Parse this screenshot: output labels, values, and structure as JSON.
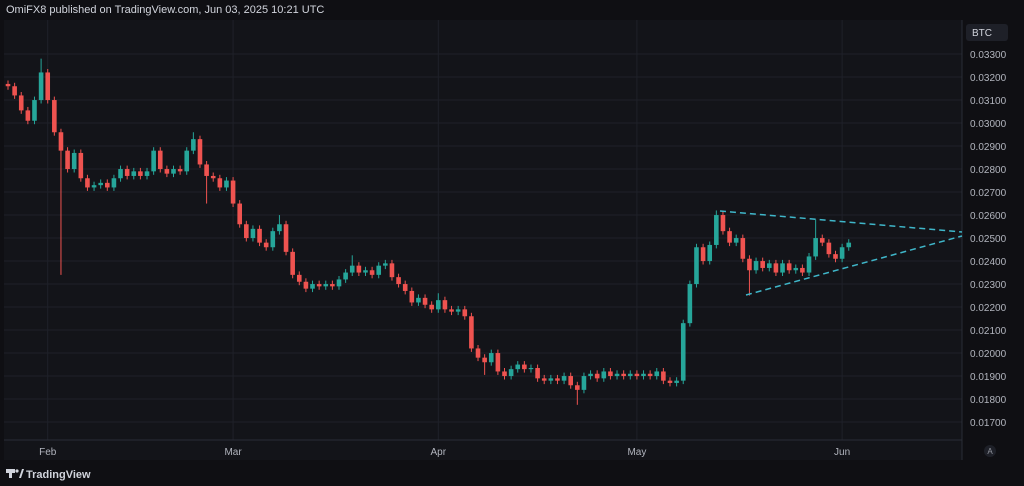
{
  "header": "OmiFX8 published on TradingView.com, Jun 03, 2025 10:21 UTC",
  "footer": "TradingView",
  "chart_data": {
    "type": "candlestick",
    "currency": "BTC",
    "autoscale_button": "A",
    "up_color": "#26a69a",
    "down_color": "#ef5350",
    "grid": true,
    "ylim": [
      0.01622,
      0.03448
    ],
    "yticks": [
      {
        "value": 0.017,
        "label": "0.01700"
      },
      {
        "value": 0.018,
        "label": "0.01800"
      },
      {
        "value": 0.019,
        "label": "0.01900"
      },
      {
        "value": 0.02,
        "label": "0.02000"
      },
      {
        "value": 0.021,
        "label": "0.02100"
      },
      {
        "value": 0.022,
        "label": "0.02200"
      },
      {
        "value": 0.023,
        "label": "0.02300"
      },
      {
        "value": 0.024,
        "label": "0.02400"
      },
      {
        "value": 0.025,
        "label": "0.02500"
      },
      {
        "value": 0.026,
        "label": "0.02600"
      },
      {
        "value": 0.027,
        "label": "0.02700"
      },
      {
        "value": 0.028,
        "label": "0.02800"
      },
      {
        "value": 0.029,
        "label": "0.02900"
      },
      {
        "value": 0.03,
        "label": "0.03000"
      },
      {
        "value": 0.031,
        "label": "0.03100"
      },
      {
        "value": 0.032,
        "label": "0.03200"
      },
      {
        "value": 0.033,
        "label": "0.03300"
      }
    ],
    "categories": [
      null,
      null,
      null,
      null,
      null,
      null,
      "Feb",
      null,
      null,
      null,
      null,
      null,
      null,
      null,
      null,
      null,
      null,
      null,
      null,
      null,
      null,
      null,
      null,
      null,
      null,
      null,
      null,
      null,
      null,
      null,
      null,
      null,
      null,
      null,
      "Mar",
      null,
      null,
      null,
      null,
      null,
      null,
      null,
      null,
      null,
      null,
      null,
      null,
      null,
      null,
      null,
      null,
      null,
      null,
      null,
      null,
      null,
      null,
      null,
      null,
      null,
      null,
      null,
      null,
      null,
      null,
      "Apr",
      null,
      null,
      null,
      null,
      null,
      null,
      null,
      null,
      null,
      null,
      null,
      null,
      null,
      null,
      null,
      null,
      null,
      null,
      null,
      null,
      null,
      null,
      null,
      null,
      null,
      null,
      null,
      null,
      null,
      "May",
      null,
      null,
      null,
      null,
      null,
      null,
      null,
      null,
      null,
      null,
      null,
      null,
      null,
      null,
      null,
      null,
      null,
      null,
      null,
      null,
      null,
      null,
      null,
      null,
      null,
      null,
      null,
      null,
      null,
      null,
      "Jun",
      null
    ],
    "open": [
      0.0317,
      0.0316,
      0.0312,
      0.03055,
      0.0301,
      0.031,
      0.0322,
      0.031,
      0.0296,
      0.0288,
      0.028,
      0.0287,
      0.0276,
      0.0272,
      0.0273,
      0.0274,
      0.0272,
      0.0276,
      0.028,
      0.0277,
      0.0279,
      0.0277,
      0.0279,
      0.0288,
      0.028,
      0.0278,
      0.028,
      0.0279,
      0.0288,
      0.0293,
      0.0282,
      0.0277,
      0.0276,
      0.0272,
      0.0275,
      0.0265,
      0.0256,
      0.025,
      0.0254,
      0.0248,
      0.0246,
      0.0253,
      0.0256,
      0.0244,
      0.0234,
      0.0231,
      0.0228,
      0.023,
      0.0229,
      0.023,
      0.0229,
      0.0232,
      0.0235,
      0.0238,
      0.0235,
      0.0236,
      0.0234,
      0.0238,
      0.0239,
      0.0233,
      0.023,
      0.0227,
      0.0222,
      0.0224,
      0.0221,
      0.0219,
      0.0223,
      0.0219,
      0.0218,
      0.0219,
      0.0216,
      0.0202,
      0.0198,
      0.0196,
      0.02,
      0.0192,
      0.019,
      0.0193,
      0.0195,
      0.0193,
      0.01935,
      0.0189,
      0.0188,
      0.0189,
      0.0188,
      0.019,
      0.0186,
      0.0184,
      0.019,
      0.0191,
      0.0189,
      0.0192,
      0.019,
      0.0191,
      0.019,
      0.0191,
      0.019,
      0.0191,
      0.019,
      0.0192,
      0.0188,
      0.0187,
      0.0188,
      0.0213,
      0.023,
      0.0246,
      0.024,
      0.0247,
      0.026,
      0.0253,
      0.0248,
      0.025,
      0.0241,
      0.0236,
      0.024,
      0.0237,
      0.0239,
      0.0235,
      0.0239,
      0.0236,
      0.0237,
      0.0235,
      0.0242,
      0.025,
      0.0248,
      0.0243,
      0.0241,
      0.0246
    ],
    "high": [
      0.03185,
      0.03175,
      0.03135,
      0.0307,
      0.03115,
      0.0328,
      0.03235,
      0.03115,
      0.02975,
      0.02895,
      0.02885,
      0.02885,
      0.02775,
      0.02745,
      0.02755,
      0.02755,
      0.02775,
      0.02815,
      0.02815,
      0.02805,
      0.02805,
      0.02805,
      0.02895,
      0.02895,
      0.02815,
      0.02815,
      0.02815,
      0.02895,
      0.0296,
      0.02945,
      0.02835,
      0.02785,
      0.02775,
      0.02765,
      0.02765,
      0.02665,
      0.02575,
      0.02555,
      0.02555,
      0.02495,
      0.02545,
      0.026,
      0.02575,
      0.02455,
      0.02355,
      0.02325,
      0.02315,
      0.02315,
      0.02315,
      0.02315,
      0.02335,
      0.02365,
      0.02425,
      0.02395,
      0.02375,
      0.02375,
      0.02395,
      0.02405,
      0.02405,
      0.02345,
      0.02315,
      0.02285,
      0.02255,
      0.02255,
      0.02225,
      0.0226,
      0.02245,
      0.02205,
      0.02205,
      0.02205,
      0.02175,
      0.02035,
      0.01995,
      0.02015,
      0.02015,
      0.01935,
      0.01945,
      0.01965,
      0.01965,
      0.0195,
      0.0195,
      0.01905,
      0.01905,
      0.01905,
      0.01915,
      0.01915,
      0.01875,
      0.01915,
      0.01925,
      0.01925,
      0.01935,
      0.01935,
      0.01925,
      0.01925,
      0.01925,
      0.01925,
      0.01925,
      0.01925,
      0.01935,
      0.01935,
      0.01895,
      0.01895,
      0.02145,
      0.02315,
      0.02475,
      0.02475,
      0.02485,
      0.0262,
      0.02615,
      0.02545,
      0.02515,
      0.02515,
      0.02425,
      0.02415,
      0.02415,
      0.02405,
      0.02405,
      0.02405,
      0.02405,
      0.02385,
      0.02385,
      0.02435,
      0.0258,
      0.02515,
      0.02495,
      0.02445,
      0.02475,
      0.02495
    ],
    "low": [
      0.03145,
      0.03105,
      0.0304,
      0.02995,
      0.02995,
      0.03085,
      0.03085,
      0.02945,
      0.0234,
      0.02785,
      0.02785,
      0.02745,
      0.02705,
      0.02705,
      0.02715,
      0.02705,
      0.02705,
      0.02745,
      0.02755,
      0.02755,
      0.02755,
      0.02755,
      0.02775,
      0.02785,
      0.02765,
      0.02765,
      0.02775,
      0.02775,
      0.02865,
      0.02805,
      0.0265,
      0.02745,
      0.02705,
      0.02705,
      0.02635,
      0.02545,
      0.02485,
      0.02485,
      0.02465,
      0.02445,
      0.02445,
      0.02515,
      0.02425,
      0.02325,
      0.02295,
      0.02265,
      0.02265,
      0.02275,
      0.02275,
      0.02275,
      0.02275,
      0.02305,
      0.02335,
      0.02335,
      0.02335,
      0.02325,
      0.02325,
      0.02365,
      0.02315,
      0.02285,
      0.02255,
      0.02205,
      0.02205,
      0.02195,
      0.02175,
      0.02175,
      0.02175,
      0.02165,
      0.02165,
      0.02145,
      0.02005,
      0.01965,
      0.01905,
      0.01945,
      0.01905,
      0.01885,
      0.01885,
      0.01915,
      0.01915,
      0.01915,
      0.01875,
      0.01865,
      0.01865,
      0.01865,
      0.01865,
      0.01845,
      0.01775,
      0.01825,
      0.01885,
      0.01875,
      0.01875,
      0.01885,
      0.01885,
      0.01885,
      0.01885,
      0.01885,
      0.01885,
      0.01885,
      0.01885,
      0.01865,
      0.01855,
      0.01855,
      0.01865,
      0.02115,
      0.02285,
      0.02385,
      0.02385,
      0.02455,
      0.02515,
      0.02465,
      0.02465,
      0.02395,
      0.0225,
      0.02345,
      0.02355,
      0.02355,
      0.02335,
      0.02335,
      0.02345,
      0.02345,
      0.02335,
      0.02335,
      0.02405,
      0.02465,
      0.02415,
      0.02395,
      0.02395,
      0.02445
    ],
    "close": [
      0.0316,
      0.0312,
      0.03055,
      0.0301,
      0.031,
      0.0322,
      0.031,
      0.0296,
      0.0288,
      0.028,
      0.0287,
      0.0276,
      0.0272,
      0.0273,
      0.0274,
      0.0272,
      0.0276,
      0.028,
      0.0277,
      0.0279,
      0.0277,
      0.0279,
      0.0288,
      0.028,
      0.0278,
      0.028,
      0.0279,
      0.0288,
      0.0293,
      0.0282,
      0.0277,
      0.0276,
      0.0272,
      0.0275,
      0.0265,
      0.0256,
      0.025,
      0.0254,
      0.0248,
      0.0246,
      0.0253,
      0.0256,
      0.0244,
      0.0234,
      0.0231,
      0.0228,
      0.023,
      0.0229,
      0.023,
      0.0229,
      0.0232,
      0.0235,
      0.0238,
      0.0235,
      0.0236,
      0.0234,
      0.0238,
      0.0239,
      0.0233,
      0.023,
      0.0227,
      0.0222,
      0.0224,
      0.0221,
      0.0219,
      0.0223,
      0.0219,
      0.0218,
      0.0219,
      0.0216,
      0.0202,
      0.0198,
      0.0196,
      0.02,
      0.0192,
      0.019,
      0.0193,
      0.0195,
      0.0193,
      0.01935,
      0.0189,
      0.0188,
      0.0189,
      0.0188,
      0.019,
      0.0186,
      0.0184,
      0.019,
      0.0191,
      0.0189,
      0.0192,
      0.019,
      0.0191,
      0.019,
      0.0191,
      0.019,
      0.0191,
      0.019,
      0.0192,
      0.0188,
      0.0187,
      0.0188,
      0.0213,
      0.023,
      0.0246,
      0.024,
      0.0247,
      0.026,
      0.0253,
      0.0248,
      0.025,
      0.0241,
      0.0236,
      0.024,
      0.0237,
      0.0239,
      0.0235,
      0.0239,
      0.0236,
      0.0237,
      0.0235,
      0.0242,
      0.025,
      0.0248,
      0.0243,
      0.0241,
      0.0246,
      0.0248
    ]
  }
}
